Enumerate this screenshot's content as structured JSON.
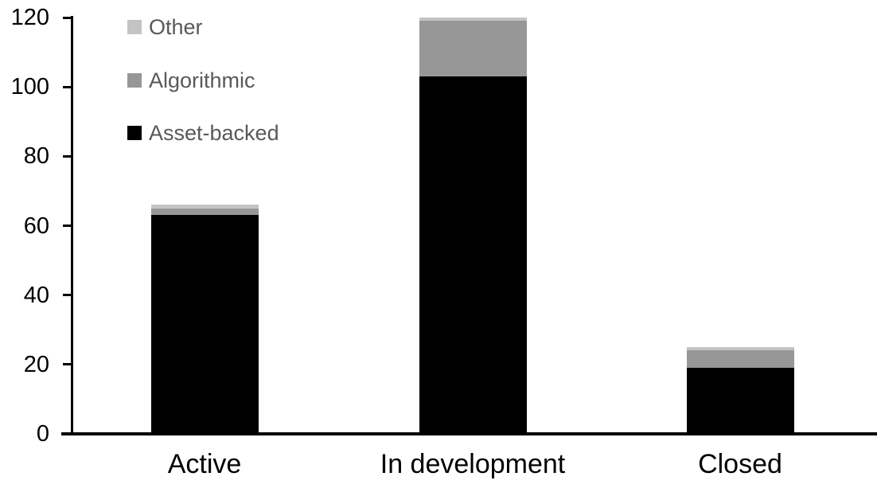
{
  "chart_data": {
    "type": "bar",
    "stacked": true,
    "title": "",
    "xlabel": "",
    "ylabel": "",
    "categories": [
      "Active",
      "In development",
      "Closed"
    ],
    "series": [
      {
        "name": "Other",
        "color": "#c4c4c4",
        "values": [
          1,
          1,
          1
        ]
      },
      {
        "name": "Algorithmic",
        "color": "#979797",
        "values": [
          2,
          16,
          5
        ]
      },
      {
        "name": "Asset-backed",
        "color": "#000000",
        "values": [
          63,
          103,
          19
        ]
      }
    ],
    "totals": [
      66,
      120,
      25
    ],
    "ylim": [
      0,
      120
    ],
    "yticks": [
      0,
      20,
      40,
      60,
      80,
      100,
      120
    ],
    "grid": false,
    "legend_position": "top-left",
    "legend_text_color": "#595959",
    "axis_color": "#000000",
    "background_color": "#ffffff"
  }
}
